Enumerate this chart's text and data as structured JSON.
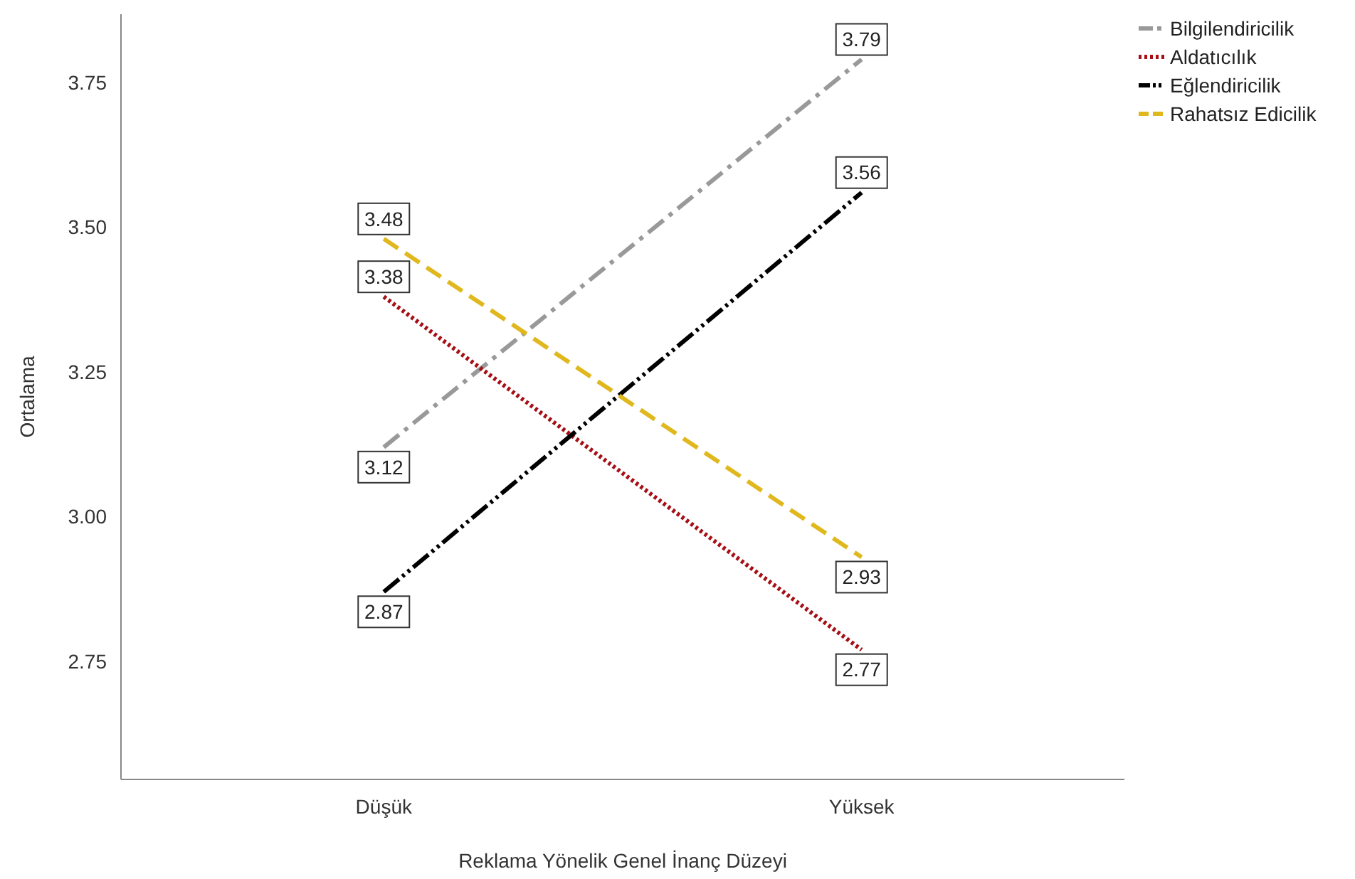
{
  "chart_data": {
    "type": "line",
    "xlabel": "Reklama Yönelik Genel İnanç Düzeyi",
    "ylabel": "Ortalama",
    "categories": [
      "Düşük",
      "Yüksek"
    ],
    "series": [
      {
        "name": "Bilgilendiricilik",
        "color": "#999999",
        "values": [
          3.12,
          3.79
        ],
        "line_style": "dashdot"
      },
      {
        "name": "Aldatıcılık",
        "color": "#a50f15",
        "values": [
          3.38,
          2.77
        ],
        "line_style": "dotted"
      },
      {
        "name": "Eğlendiricilik",
        "color": "#000000",
        "values": [
          2.87,
          3.56
        ],
        "line_style": "dashdotdot"
      },
      {
        "name": "Rahatsız Edicilik",
        "color": "#e0b81e",
        "values": [
          3.48,
          2.93
        ],
        "line_style": "dashed"
      }
    ],
    "ylim": [
      2.546,
      3.868
    ],
    "yticks": [
      {
        "value": 2.75,
        "label": "2.75"
      },
      {
        "value": 3,
        "label": "3.00"
      },
      {
        "value": 3.25,
        "label": "3.25"
      },
      {
        "value": 3.5,
        "label": "3.50"
      },
      {
        "value": 3.75,
        "label": "3.75"
      }
    ],
    "data_labels": true,
    "legend": "top right",
    "grid": false
  }
}
